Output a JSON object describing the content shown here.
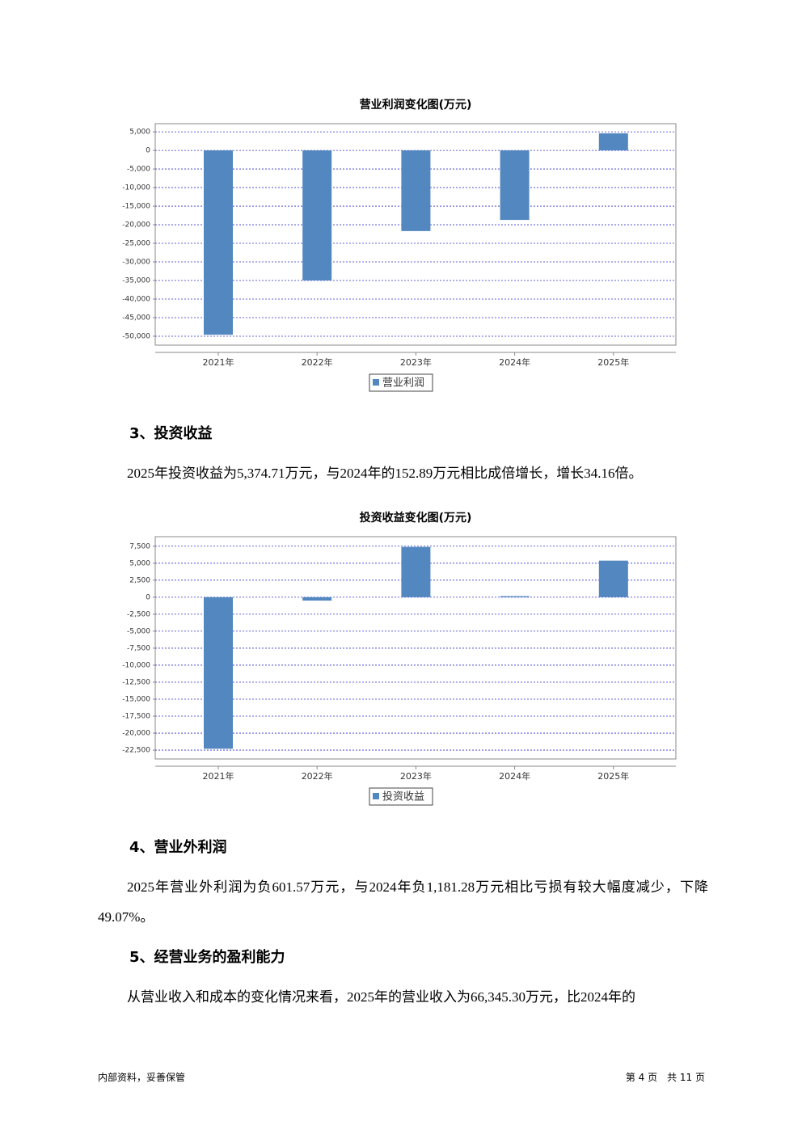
{
  "chart_data": [
    {
      "type": "bar",
      "title": "营业利润变化图(万元)",
      "categories": [
        "2021年",
        "2022年",
        "2023年",
        "2024年",
        "2025年"
      ],
      "series": [
        {
          "name": "营业利润",
          "color": "#5287c0",
          "values": [
            -49600,
            -35000,
            -21700,
            -18700,
            4600
          ]
        }
      ],
      "ylim": [
        -52400,
        7200
      ],
      "yticks": [
        {
          "value": 5000,
          "label": "5,000"
        },
        0,
        {
          "value": -5000,
          "label": "-5,000"
        },
        {
          "value": -10000,
          "label": "-10,000"
        },
        {
          "value": -15000,
          "label": "-15,000"
        },
        {
          "value": -20000,
          "label": "-20,000"
        },
        {
          "value": -25000,
          "label": "-25,000"
        },
        {
          "value": -30000,
          "label": "-30,000"
        },
        {
          "value": -35000,
          "label": "-35,000"
        },
        {
          "value": -40000,
          "label": "-40,000"
        },
        {
          "value": -45000,
          "label": "-45,000"
        },
        {
          "value": -50000,
          "label": "-50,000"
        }
      ],
      "grid": true
    },
    {
      "type": "bar",
      "title": "投资收益变化图(万元)",
      "categories": [
        "2021年",
        "2022年",
        "2023年",
        "2024年",
        "2025年"
      ],
      "series": [
        {
          "name": "投资收益",
          "color": "#5287c0",
          "values": [
            -22300,
            -500,
            7400,
            152.89,
            5374.71
          ]
        }
      ],
      "ylim": [
        -23800,
        8900
      ],
      "yticks": [
        {
          "value": 7500,
          "label": "7,500"
        },
        {
          "value": 5000,
          "label": "5,000"
        },
        {
          "value": 2500,
          "label": "2,500"
        },
        0,
        {
          "value": -2500,
          "label": "-2,500"
        },
        {
          "value": -5000,
          "label": "-5,000"
        },
        {
          "value": -7500,
          "label": "-7,500"
        },
        {
          "value": -10000,
          "label": "-10,000"
        },
        {
          "value": -12500,
          "label": "-12,500"
        },
        {
          "value": -15000,
          "label": "-15,000"
        },
        {
          "value": -17500,
          "label": "-17,500"
        },
        {
          "value": -20000,
          "label": "-20,000"
        },
        {
          "value": -22500,
          "label": "-22,500"
        }
      ],
      "grid": true
    }
  ],
  "headings": [
    "3、投资收益",
    "4、营业外利润",
    "5、经营业务的盈利能力"
  ],
  "paragraphs": [
    "2025年投资收益为5,374.71万元，与2024年的152.89万元相比成倍增长，增长34.16倍。",
    "2025年营业外利润为负601.57万元，与2024年负1,181.28万元相比亏损有较大幅度减少，下降49.07%。",
    "从营业收入和成本的变化情况来看，2025年的营业收入为66,345.30万元，比2024年的"
  ],
  "footer": {
    "left": "内部资料，妥善保管",
    "right": "第 4 页　共 11 页"
  }
}
